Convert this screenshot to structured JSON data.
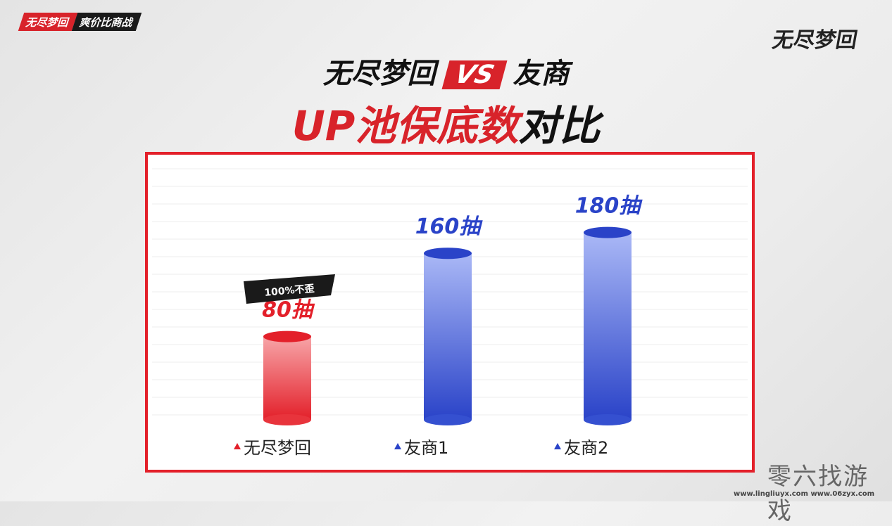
{
  "badge": {
    "brand": "无尽梦回",
    "topic": "爽价比商战"
  },
  "logo": "无尽梦回",
  "title": {
    "left": "无尽梦回",
    "vs": "VS",
    "right": "友商",
    "sub_red": "UP池保底数",
    "sub_black": "对比"
  },
  "chart_data": {
    "type": "bar",
    "categories": [
      "无尽梦回",
      "友商1",
      "友商2"
    ],
    "values": [
      80,
      160,
      180
    ],
    "value_labels": [
      "80抽",
      "160抽",
      "180抽"
    ],
    "annotation": "100%不歪",
    "colors": [
      "#e8343c",
      "#3a55d0",
      "#3a55d0"
    ],
    "ylim": [
      0,
      200
    ],
    "grid": true,
    "legend": "none"
  },
  "watermark": {
    "name": "零六找游戏",
    "urls": "www.lingliuyx.com   www.06zyx.com"
  }
}
